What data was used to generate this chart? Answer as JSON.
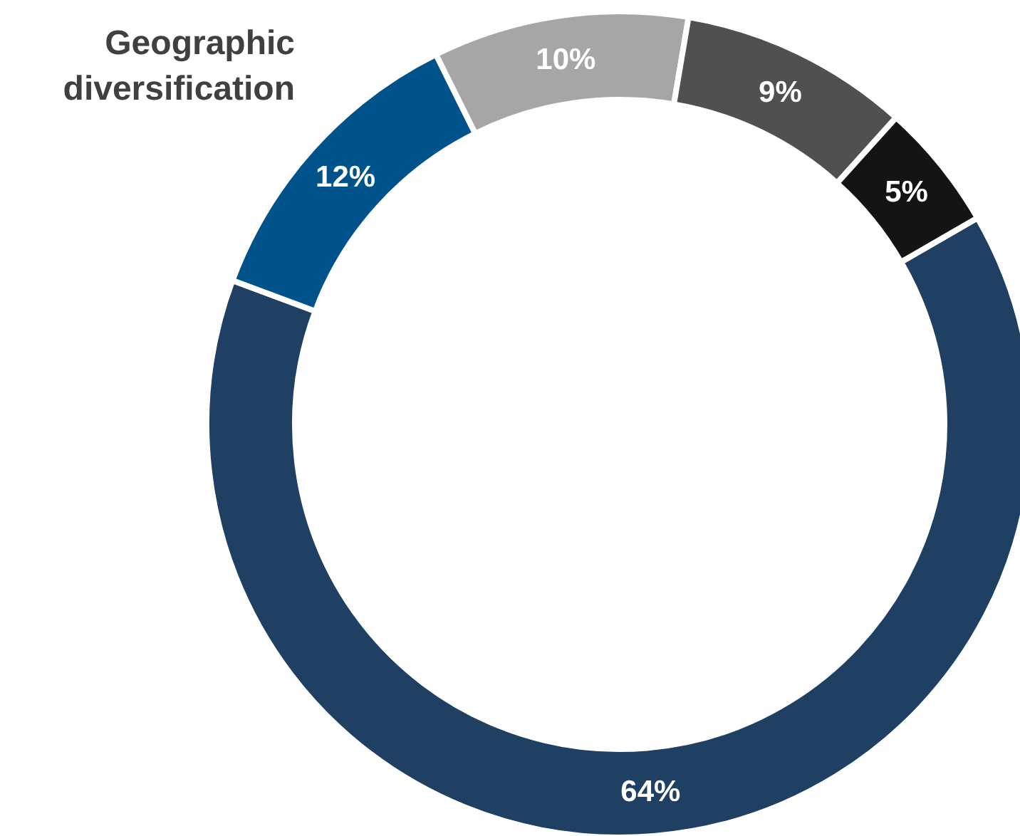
{
  "chart_data": {
    "type": "donut",
    "title": "Geographic diversification",
    "categories": [
      null,
      null,
      null,
      null,
      null
    ],
    "values": [
      64,
      12,
      10,
      9,
      5
    ],
    "value_labels": [
      "64%",
      "12%",
      "10%",
      "9%",
      "5%"
    ],
    "colors": [
      "#1f3f63",
      "#00538a",
      "#a6a6a6",
      "#505050",
      "#141414"
    ]
  }
}
